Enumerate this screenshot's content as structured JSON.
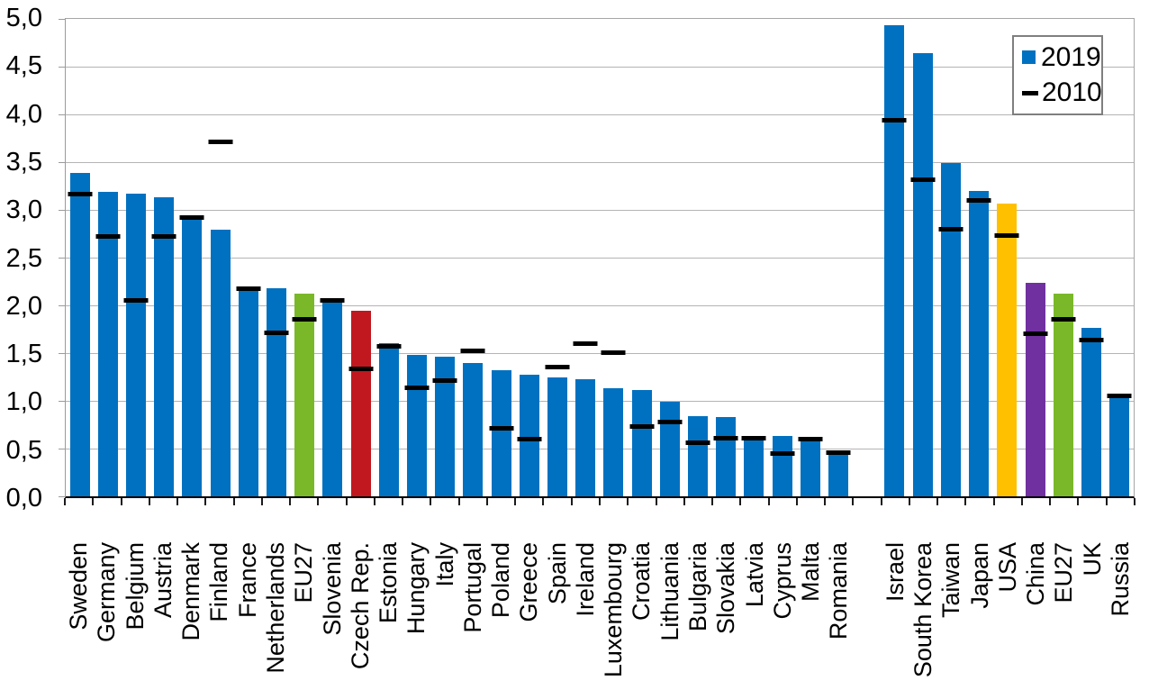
{
  "chart_data": {
    "type": "bar",
    "title": "",
    "xlabel": "",
    "ylabel": "",
    "ylim": [
      0,
      5
    ],
    "ytick_step": 0.5,
    "decimal_style": "comma",
    "grid": "horizontal",
    "yticks": [
      {
        "v": 0.0,
        "label": "0,0"
      },
      {
        "v": 0.5,
        "label": "0,5"
      },
      {
        "v": 1.0,
        "label": "1,0"
      },
      {
        "v": 1.5,
        "label": "1,5"
      },
      {
        "v": 2.0,
        "label": "2,0"
      },
      {
        "v": 2.5,
        "label": "2,5"
      },
      {
        "v": 3.0,
        "label": "3,0"
      },
      {
        "v": 3.5,
        "label": "3,5"
      },
      {
        "v": 4.0,
        "label": "4,0"
      },
      {
        "v": 4.5,
        "label": "4,5"
      },
      {
        "v": 5.0,
        "label": "5,0"
      }
    ],
    "legend": {
      "position": "top-right",
      "items": [
        {
          "label": "2019",
          "marker": "square",
          "color": "#0071C0"
        },
        {
          "label": "2010",
          "marker": "dash",
          "color": "#000000"
        }
      ]
    },
    "colors": {
      "default_bar": "#0071C0",
      "highlight_green": "#7AB829",
      "highlight_red": "#C1181F",
      "highlight_orange": "#FFC000",
      "highlight_purple": "#7030A0",
      "marker_2010": "#000000",
      "gridline": "#b4b4b4",
      "axis": "#000000"
    },
    "bars": [
      {
        "label": "Sweden",
        "v2019": 3.39,
        "v2010": 3.17,
        "color": "#0071C0"
      },
      {
        "label": "Germany",
        "v2019": 3.19,
        "v2010": 2.73,
        "color": "#0071C0"
      },
      {
        "label": "Belgium",
        "v2019": 3.17,
        "v2010": 2.06,
        "color": "#0071C0"
      },
      {
        "label": "Austria",
        "v2019": 3.13,
        "v2010": 2.73,
        "color": "#0071C0"
      },
      {
        "label": "Denmark",
        "v2019": 2.91,
        "v2010": 2.92,
        "color": "#0071C0"
      },
      {
        "label": "Finland",
        "v2019": 2.79,
        "v2010": 3.72,
        "color": "#0071C0"
      },
      {
        "label": "France",
        "v2019": 2.19,
        "v2010": 2.18,
        "color": "#0071C0"
      },
      {
        "label": "Netherlands",
        "v2019": 2.18,
        "v2010": 1.72,
        "color": "#0071C0"
      },
      {
        "label": "EU27",
        "v2019": 2.12,
        "v2010": 1.86,
        "color": "#7AB829"
      },
      {
        "label": "Slovenia",
        "v2019": 2.05,
        "v2010": 2.06,
        "color": "#0071C0"
      },
      {
        "label": "Czech Rep.",
        "v2019": 1.94,
        "v2010": 1.34,
        "color": "#C1181F"
      },
      {
        "label": "Estonia",
        "v2019": 1.6,
        "v2010": 1.58,
        "color": "#0071C0"
      },
      {
        "label": "Hungary",
        "v2019": 1.48,
        "v2010": 1.14,
        "color": "#0071C0"
      },
      {
        "label": "Italy",
        "v2019": 1.46,
        "v2010": 1.22,
        "color": "#0071C0"
      },
      {
        "label": "Portugal",
        "v2019": 1.4,
        "v2010": 1.53,
        "color": "#0071C0"
      },
      {
        "label": "Poland",
        "v2019": 1.32,
        "v2010": 0.72,
        "color": "#0071C0"
      },
      {
        "label": "Greece",
        "v2019": 1.27,
        "v2010": 0.6,
        "color": "#0071C0"
      },
      {
        "label": "Spain",
        "v2019": 1.25,
        "v2010": 1.36,
        "color": "#0071C0"
      },
      {
        "label": "Ireland",
        "v2019": 1.23,
        "v2010": 1.6,
        "color": "#0071C0"
      },
      {
        "label": "Luxembourg",
        "v2019": 1.13,
        "v2010": 1.51,
        "color": "#0071C0"
      },
      {
        "label": "Croatia",
        "v2019": 1.11,
        "v2010": 0.74,
        "color": "#0071C0"
      },
      {
        "label": "Lithuania",
        "v2019": 0.99,
        "v2010": 0.78,
        "color": "#0071C0"
      },
      {
        "label": "Bulgaria",
        "v2019": 0.84,
        "v2010": 0.57,
        "color": "#0071C0"
      },
      {
        "label": "Slovakia",
        "v2019": 0.83,
        "v2010": 0.61,
        "color": "#0071C0"
      },
      {
        "label": "Latvia",
        "v2019": 0.62,
        "v2010": 0.61,
        "color": "#0071C0"
      },
      {
        "label": "Cyprus",
        "v2019": 0.63,
        "v2010": 0.45,
        "color": "#0071C0"
      },
      {
        "label": "Malta",
        "v2019": 0.58,
        "v2010": 0.6,
        "color": "#0071C0"
      },
      {
        "label": "Romania",
        "v2019": 0.47,
        "v2010": 0.46,
        "color": "#0071C0"
      },
      {
        "gap": true
      },
      {
        "label": "Israel",
        "v2019": 4.93,
        "v2010": 3.94,
        "color": "#0071C0"
      },
      {
        "label": "South Korea",
        "v2019": 4.64,
        "v2010": 3.32,
        "color": "#0071C0"
      },
      {
        "label": "Taiwan",
        "v2019": 3.49,
        "v2010": 2.8,
        "color": "#0071C0"
      },
      {
        "label": "Japan",
        "v2019": 3.2,
        "v2010": 3.1,
        "color": "#0071C0"
      },
      {
        "label": "USA",
        "v2019": 3.07,
        "v2010": 2.74,
        "color": "#FFC000"
      },
      {
        "label": "China",
        "v2019": 2.24,
        "v2010": 1.71,
        "color": "#7030A0"
      },
      {
        "label": "EU27",
        "v2019": 2.12,
        "v2010": 1.86,
        "color": "#7AB829"
      },
      {
        "label": "UK",
        "v2019": 1.76,
        "v2010": 1.64,
        "color": "#0071C0"
      },
      {
        "label": "Russia",
        "v2019": 1.04,
        "v2010": 1.06,
        "color": "#0071C0"
      }
    ]
  }
}
